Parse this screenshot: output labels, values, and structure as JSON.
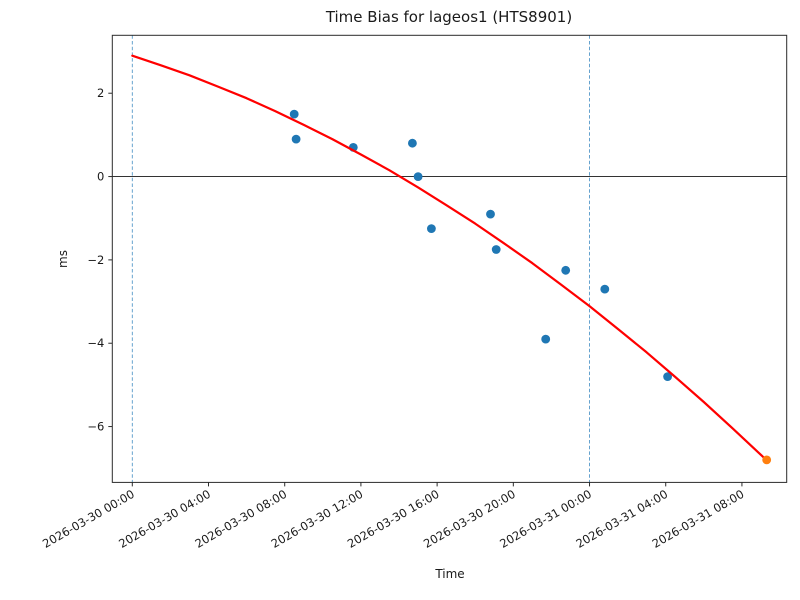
{
  "figure": {
    "title": "Time Bias for lageos1 (HTS8901)",
    "xlabel": "Time",
    "ylabel": "ms"
  },
  "chart_data": {
    "type": "scatter",
    "title": "Time Bias for lageos1 (HTS8901)",
    "xlabel": "Time",
    "ylabel": "ms",
    "x_unit": "hours since 2026-03-30 00:00",
    "xlim": [
      -1.05,
      34.35
    ],
    "ylim": [
      -7.34,
      3.39
    ],
    "grid": false,
    "legend": "none",
    "x_ticks": [
      {
        "t": 0,
        "label": "2026-03-30 00:00"
      },
      {
        "t": 4,
        "label": "2026-03-30 04:00"
      },
      {
        "t": 8,
        "label": "2026-03-30 08:00"
      },
      {
        "t": 12,
        "label": "2026-03-30 12:00"
      },
      {
        "t": 16,
        "label": "2026-03-30 16:00"
      },
      {
        "t": 20,
        "label": "2026-03-30 20:00"
      },
      {
        "t": 24,
        "label": "2026-03-31 00:00"
      },
      {
        "t": 28,
        "label": "2026-03-31 04:00"
      },
      {
        "t": 32,
        "label": "2026-03-31 08:00"
      }
    ],
    "y_ticks": [
      {
        "v": 2,
        "label": "2"
      },
      {
        "v": 0,
        "label": "0"
      },
      {
        "v": -2,
        "label": "−2"
      },
      {
        "v": -4,
        "label": "−4"
      },
      {
        "v": -6,
        "label": "−6"
      }
    ],
    "zero_line_y": 0,
    "day_boundaries": [
      {
        "t": 0,
        "label": "2026-03-30 00:00"
      },
      {
        "t": 24,
        "label": "2026-03-31 00:00"
      }
    ],
    "series": [
      {
        "name": "observed-time-bias",
        "type": "scatter",
        "color": "#1f77b4",
        "points": [
          [
            8.5,
            1.5
          ],
          [
            8.6,
            0.9
          ],
          [
            11.6,
            0.7
          ],
          [
            14.7,
            0.8
          ],
          [
            15.0,
            0.0
          ],
          [
            15.7,
            -1.25
          ],
          [
            18.8,
            -0.9
          ],
          [
            19.1,
            -1.75
          ],
          [
            21.7,
            -3.9
          ],
          [
            22.75,
            -2.25
          ],
          [
            24.8,
            -2.7
          ],
          [
            28.1,
            -4.8
          ]
        ]
      },
      {
        "name": "quadratic-fit",
        "type": "line",
        "color": "#ff0000",
        "fit_coeffs_t2_t_c": [
          -0.00443,
          -0.1442,
          2.9
        ],
        "points": [
          [
            0,
            2.9
          ],
          [
            1.5,
            2.67
          ],
          [
            3,
            2.43
          ],
          [
            4.5,
            2.16
          ],
          [
            6,
            1.88
          ],
          [
            7.5,
            1.57
          ],
          [
            9,
            1.24
          ],
          [
            10.5,
            0.9
          ],
          [
            12,
            0.53
          ],
          [
            13.5,
            0.15
          ],
          [
            15,
            -0.26
          ],
          [
            16.5,
            -0.69
          ],
          [
            18,
            -1.13
          ],
          [
            19.5,
            -1.6
          ],
          [
            21,
            -2.08
          ],
          [
            22.5,
            -2.59
          ],
          [
            24,
            -3.11
          ],
          [
            25.5,
            -3.66
          ],
          [
            27,
            -4.22
          ],
          [
            28.5,
            -4.81
          ],
          [
            30,
            -5.41
          ],
          [
            31.5,
            -6.04
          ],
          [
            33,
            -6.68
          ],
          [
            33.3,
            -6.81
          ]
        ]
      },
      {
        "name": "latest-observation",
        "type": "scatter",
        "color": "#ff7f0e",
        "points": [
          [
            33.3,
            -6.8
          ]
        ]
      }
    ],
    "colors": {
      "scatter": "#1f77b4",
      "latest": "#ff7f0e",
      "fit_line": "#ff0000",
      "day_boundary": "#5598c9",
      "zero_line": "#333333",
      "axis": "#2b2b2b",
      "text": "#1a1a1a"
    }
  }
}
